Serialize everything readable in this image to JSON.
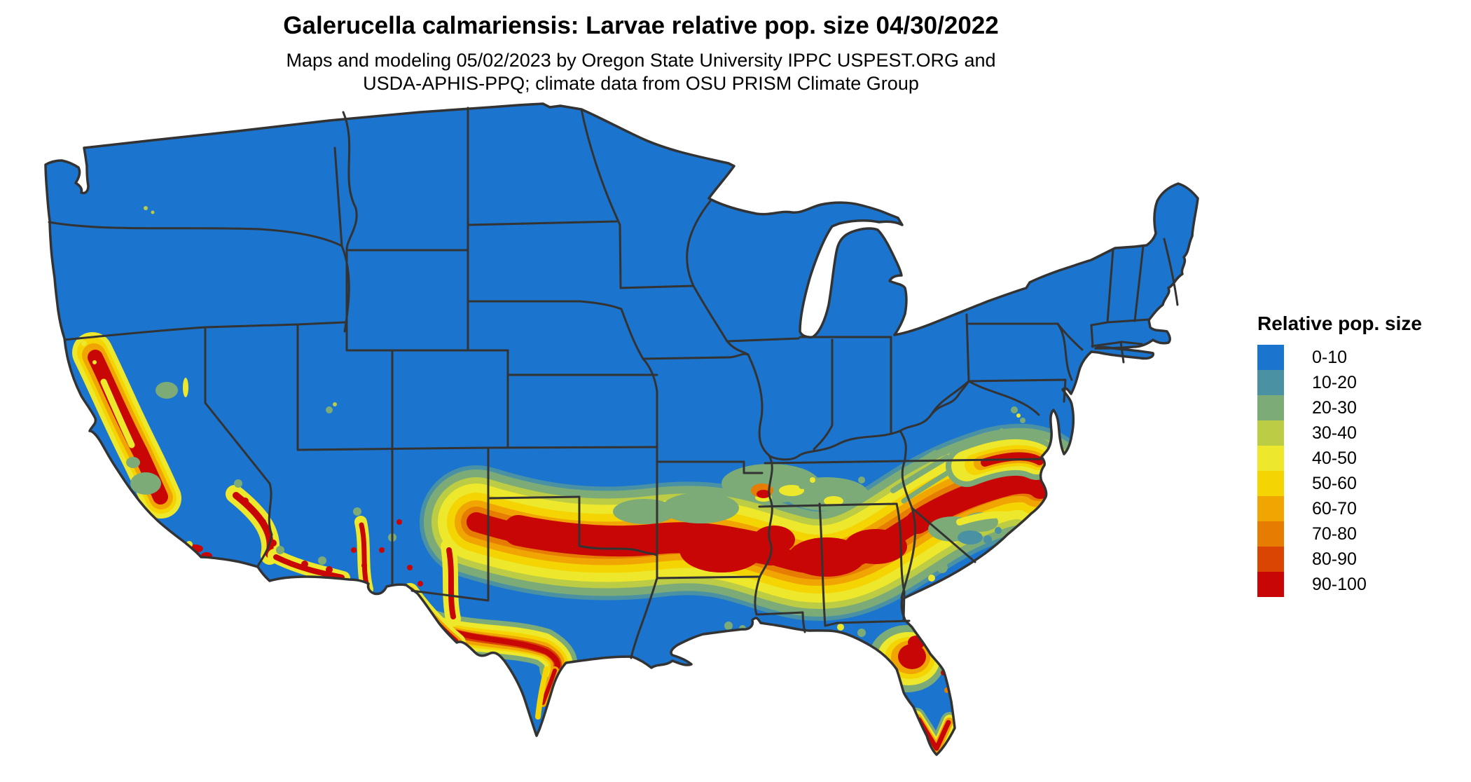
{
  "title": "Galerucella calmariensis: Larvae relative pop. size 04/30/2022",
  "subtitle_line1": "Maps and modeling 05/02/2023 by Oregon State University IPPC USPEST.ORG and",
  "subtitle_line2": "USDA-APHIS-PPQ; climate data from OSU PRISM Climate Group",
  "legend": {
    "title": "Relative pop. size",
    "entries": [
      {
        "label": "0-10",
        "color": "#1B74CE"
      },
      {
        "label": "10-20",
        "color": "#4B91A4"
      },
      {
        "label": "20-30",
        "color": "#7CAB77"
      },
      {
        "label": "30-40",
        "color": "#BCCC44"
      },
      {
        "label": "40-50",
        "color": "#EDE82B"
      },
      {
        "label": "50-60",
        "color": "#F4D403"
      },
      {
        "label": "60-70",
        "color": "#F0A502"
      },
      {
        "label": "70-80",
        "color": "#E67C02"
      },
      {
        "label": "80-90",
        "color": "#DA4503"
      },
      {
        "label": "90-100",
        "color": "#C80605"
      }
    ]
  },
  "map": {
    "region": "Continental United States",
    "value_name": "Relative pop. size",
    "palette": {
      "blue": "#1B74CE",
      "teal": "#4B91A4",
      "sage": "#7CAB77",
      "ygrn": "#BCCC44",
      "yel": "#EDE82B",
      "gold": "#F4D403",
      "org": "#F0A502",
      "dorg": "#E67C02",
      "rorg": "#DA4503",
      "red": "#C80605",
      "line": "#333333",
      "background": "#FFFFFF"
    }
  }
}
